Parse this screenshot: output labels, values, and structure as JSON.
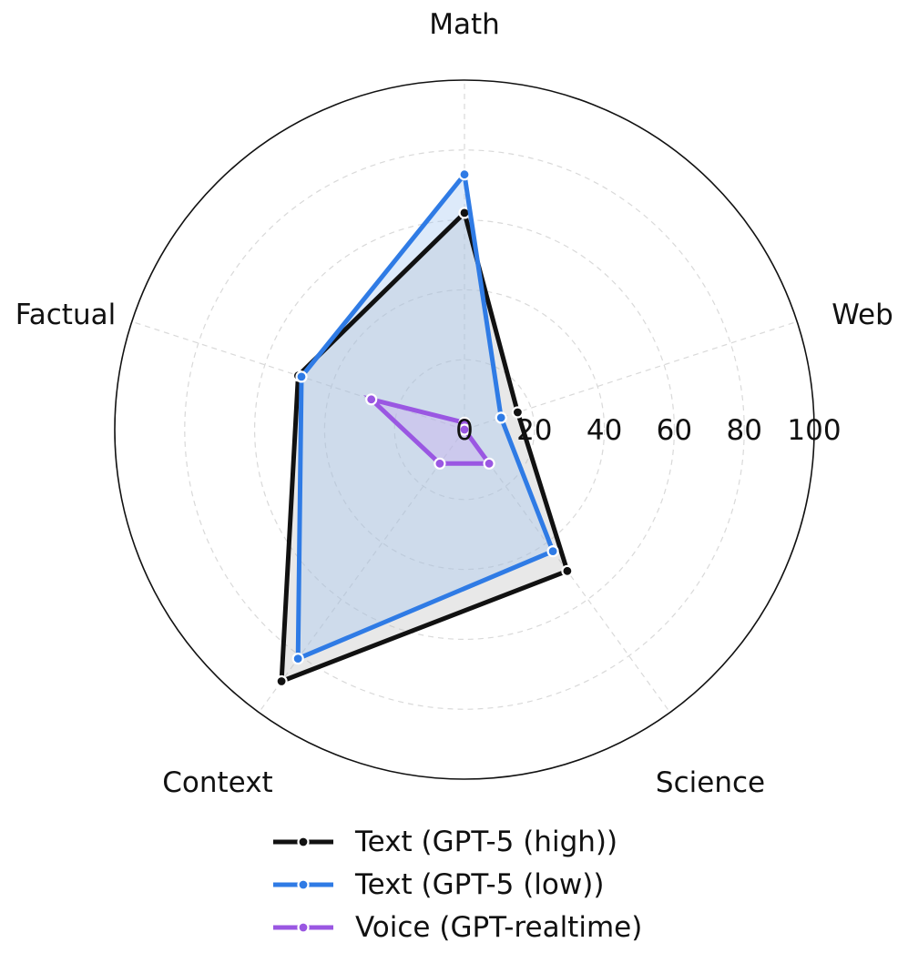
{
  "chart_data": {
    "type": "radar",
    "axes": [
      "Math",
      "Web",
      "Science",
      "Context",
      "Factual"
    ],
    "r_ticks": [
      "0",
      "20",
      "40",
      "60",
      "80",
      "100"
    ],
    "r_tick_values": [
      0,
      20,
      40,
      60,
      80,
      100
    ],
    "rlim": [
      0,
      100
    ],
    "grid": true,
    "legend_position": "bottom-center",
    "series": [
      {
        "name": "Text (GPT-5 (high))",
        "color": "#111111",
        "fill": "#bdbdbd",
        "values": [
          62,
          16,
          50,
          89,
          50
        ]
      },
      {
        "name": "Text (GPT-5 (low))",
        "color": "#2f7be5",
        "fill": "#9ec2f0",
        "values": [
          73,
          11,
          43,
          81,
          49
        ]
      },
      {
        "name": "Voice (GPT-realtime)",
        "color": "#9a57e2",
        "fill": "#c9a8f0",
        "values": [
          2,
          0,
          12,
          12,
          28
        ]
      }
    ]
  }
}
